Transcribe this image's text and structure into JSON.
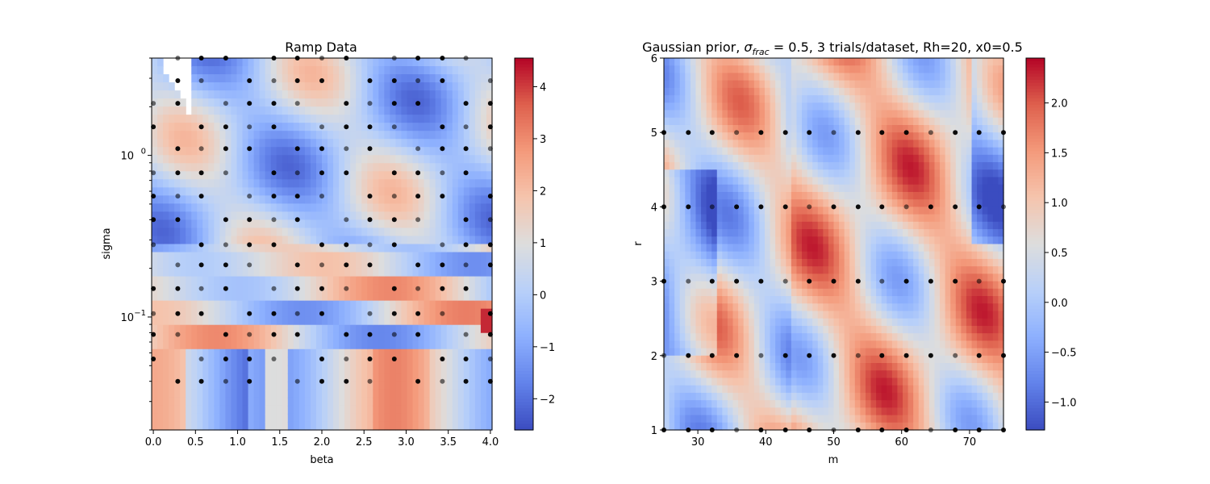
{
  "chart_data": [
    {
      "type": "heatmap",
      "title": "Ramp Data",
      "xlabel": "beta",
      "ylabel": "sigma",
      "xlim": [
        -0.02,
        4.02
      ],
      "ylim": [
        0.02,
        4.0
      ],
      "yscale": "log",
      "colormap": "coolwarm",
      "grid": false,
      "x_ticks": [
        0.0,
        0.5,
        1.0,
        1.5,
        2.0,
        2.5,
        3.0,
        3.5,
        4.0
      ],
      "x_tick_labels": [
        "0.0",
        "0.5",
        "1.0",
        "1.5",
        "2.0",
        "2.5",
        "3.0",
        "3.5",
        "4.0"
      ],
      "y_major_ticks": [
        0.1,
        1.0
      ],
      "y_tick_labels": [
        {
          "base": "10",
          "exp": "−1"
        },
        {
          "base": "10",
          "exp": "0"
        }
      ],
      "colorbar": {
        "vmin": -2.6,
        "vmax": 4.55,
        "ticks": [
          -2,
          -1,
          0,
          1,
          2,
          3,
          4
        ],
        "tick_labels": [
          "−2",
          "−1",
          "0",
          "1",
          "2",
          "3",
          "4"
        ]
      },
      "sample_grid": {
        "x": [
          0.0,
          0.29,
          0.57,
          0.86,
          1.14,
          1.43,
          1.71,
          2.0,
          2.29,
          2.57,
          2.86,
          3.14,
          3.43,
          3.71,
          4.0
        ],
        "y": [
          0.04,
          0.055,
          0.078,
          0.105,
          0.15,
          0.21,
          0.28,
          0.4,
          0.56,
          0.78,
          1.1,
          1.5,
          2.1,
          2.9,
          4.0
        ]
      },
      "sample_points_note": "black dots mark sampled (beta, sigma) pairs"
    },
    {
      "type": "heatmap",
      "title_parts": {
        "prefix": "Gaussian prior, ",
        "symbol": "σ",
        "subscript": "frac",
        "suffix": " = 0.5, 3 trials/dataset, Rh=20, x0=0.5"
      },
      "xlabel": "m",
      "ylabel": "r",
      "xlim": [
        25,
        75
      ],
      "ylim": [
        1,
        6
      ],
      "yscale": "linear",
      "colormap": "coolwarm",
      "grid": false,
      "x_ticks": [
        30,
        40,
        50,
        60,
        70
      ],
      "x_tick_labels": [
        "30",
        "40",
        "50",
        "60",
        "70"
      ],
      "y_ticks": [
        1,
        2,
        3,
        4,
        5,
        6
      ],
      "y_tick_labels": [
        "1",
        "2",
        "3",
        "4",
        "5",
        "6"
      ],
      "colorbar": {
        "vmin": -1.28,
        "vmax": 2.45,
        "ticks": [
          -1.0,
          -0.5,
          0.0,
          0.5,
          1.0,
          1.5,
          2.0
        ],
        "tick_labels": [
          "−1.0",
          "−0.5",
          "0.0",
          "0.5",
          "1.0",
          "1.5",
          "2.0"
        ]
      },
      "sample_grid": {
        "x": [
          25.0,
          28.6,
          32.1,
          35.7,
          39.3,
          42.9,
          46.4,
          50.0,
          53.6,
          57.1,
          60.7,
          64.3,
          67.9,
          71.4,
          75.0
        ],
        "y": [
          1,
          2,
          3,
          4,
          5
        ]
      },
      "sample_points_note": "black dots mark sampled (m, r) pairs"
    }
  ]
}
